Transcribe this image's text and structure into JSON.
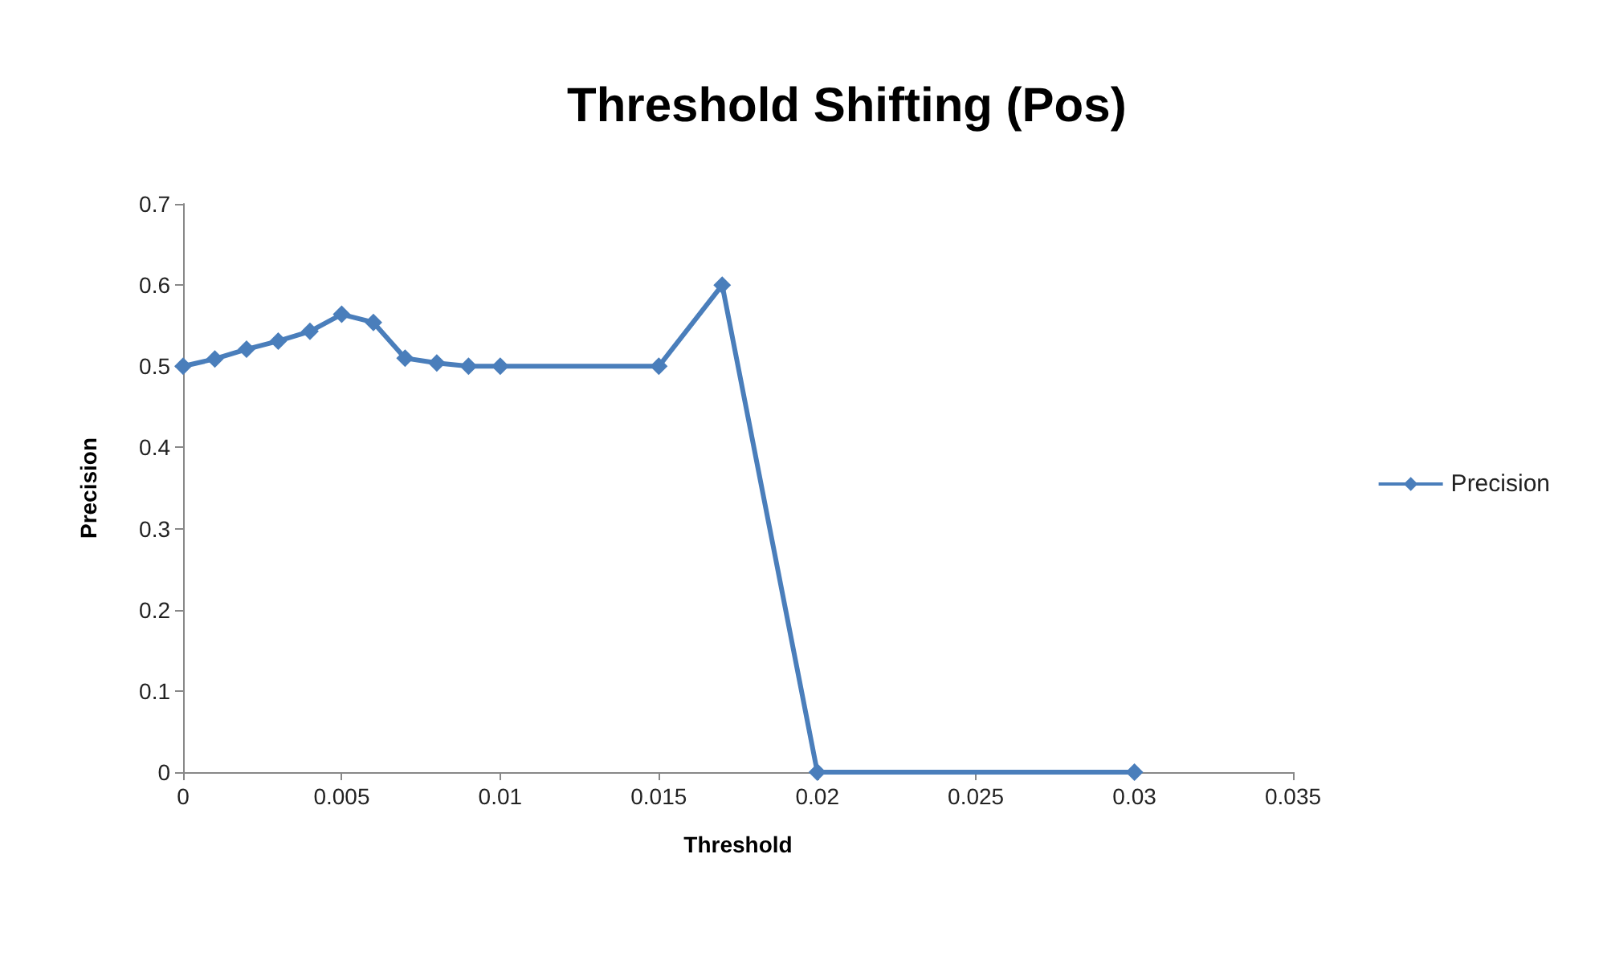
{
  "chart_data": {
    "type": "line",
    "title": "Threshold Shifting (Pos)",
    "xlabel": "Threshold",
    "ylabel": "Precision",
    "x": [
      0,
      0.001,
      0.002,
      0.003,
      0.004,
      0.005,
      0.006,
      0.007,
      0.008,
      0.009,
      0.01,
      0.015,
      0.017,
      0.02,
      0.03
    ],
    "series": [
      {
        "name": "Precision",
        "color": "#4a7ebb",
        "values": [
          0.5,
          0.509,
          0.521,
          0.531,
          0.543,
          0.564,
          0.554,
          0.51,
          0.504,
          0.5,
          0.5,
          0.5,
          0.6,
          0,
          0
        ]
      }
    ],
    "xlim": [
      0,
      0.035
    ],
    "xticks": [
      0,
      0.005,
      0.01,
      0.015,
      0.02,
      0.025,
      0.03,
      0.035
    ],
    "ylim": [
      0,
      0.7
    ],
    "yticks": [
      0,
      0.1,
      0.2,
      0.3,
      0.4,
      0.5,
      0.6,
      0.7
    ],
    "grid": false,
    "legend": "right",
    "marker": "diamond",
    "line_style": "solid"
  }
}
